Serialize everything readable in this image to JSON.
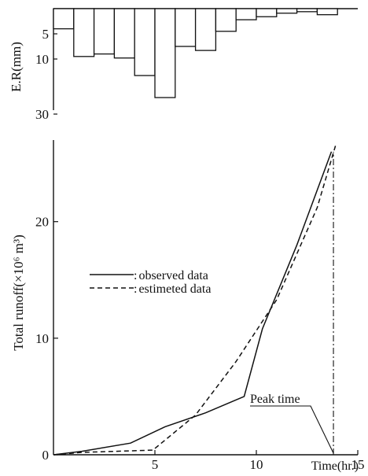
{
  "chart_data": [
    {
      "type": "bar",
      "panel": "rainfall",
      "ylabel": "E.R(mm)",
      "y_ticks": [
        5,
        10,
        30
      ],
      "orientation": "hanging from top",
      "x": [
        0.5,
        1.5,
        2.5,
        3.5,
        4.5,
        5.5,
        6.5,
        7.5,
        8.5,
        9.5,
        10.5,
        11.5,
        12.5,
        13.5
      ],
      "values": [
        4,
        9.5,
        9,
        9.8,
        16,
        24,
        7.5,
        8.3,
        4.5,
        2.2,
        1.6,
        0.9,
        0.6,
        1.2
      ]
    },
    {
      "type": "line",
      "panel": "runoff",
      "ylabel": "Total runoff(×10⁶ m³)",
      "xlabel": "Time(hr.)",
      "xlim": [
        0,
        15
      ],
      "ylim": [
        0,
        27
      ],
      "x_ticks": [
        5,
        10,
        15
      ],
      "y_ticks": [
        0,
        10,
        20
      ],
      "grid": false,
      "legend_placement": "center-left",
      "series": [
        {
          "name": "observed data",
          "style": "solid",
          "x": [
            0,
            1.4,
            3.8,
            5.5,
            7.5,
            9.4,
            10.3,
            12.0,
            13.7
          ],
          "y": [
            0,
            0.3,
            1.0,
            2.4,
            3.6,
            5.0,
            10.8,
            18.0,
            26.0
          ]
        },
        {
          "name": "estimeted data",
          "style": "dashed",
          "x": [
            0,
            1.4,
            4.9,
            7.0,
            9.0,
            11.0,
            13.0,
            13.9
          ],
          "y": [
            0,
            0.2,
            0.4,
            3.4,
            8.0,
            13.3,
            21.2,
            26.5
          ]
        }
      ],
      "peak_time": {
        "label": "Peak time",
        "x": 13.8
      }
    }
  ]
}
